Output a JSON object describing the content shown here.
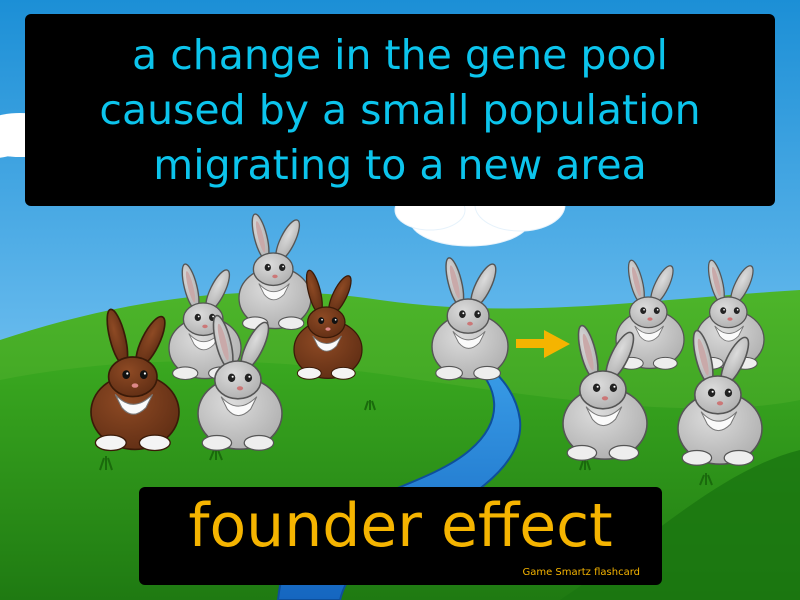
{
  "definition": {
    "lines": [
      "a change in the gene pool",
      "caused by a small population",
      "migrating to a new area"
    ]
  },
  "term": "founder effect",
  "brand": "Game Smartz flashcard",
  "colors": {
    "definition_text": "#0cc4ec",
    "term_text": "#f5b400",
    "sky_top": "#1c8fd6",
    "sky_bottom": "#b9e3f8",
    "grass": "#2e9e1c",
    "river": "#1a7fd6",
    "arrow": "#f5b400"
  },
  "illustration": {
    "rabbits_left_group": {
      "gray": 4,
      "brown": 2
    },
    "migrating_rabbit": {
      "gray": 1
    },
    "rabbits_right_group": {
      "gray": 5
    },
    "arrow_icon": "arrow-right-icon"
  }
}
